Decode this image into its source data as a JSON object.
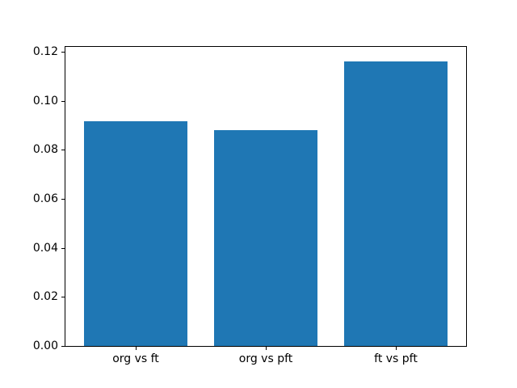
{
  "figure": {
    "background": "#ffffff",
    "spine_color": "#000000"
  },
  "chart_data": {
    "type": "bar",
    "title": "",
    "xlabel": "",
    "ylabel": "",
    "categories": [
      "org vs ft",
      "org vs pft",
      "ft vs pft"
    ],
    "values": [
      0.0918,
      0.0879,
      0.1162
    ],
    "bar_color": "#1f77b4",
    "bar_width": 0.8,
    "xlim": [
      -0.54,
      2.54
    ],
    "ylim": [
      0,
      0.122
    ],
    "yticks": [
      0.0,
      0.02,
      0.04,
      0.06,
      0.08,
      0.1,
      0.12
    ],
    "ytick_labels": [
      "0.00",
      "0.02",
      "0.04",
      "0.06",
      "0.08",
      "0.10",
      "0.12"
    ],
    "grid": false,
    "legend_position": "none"
  }
}
